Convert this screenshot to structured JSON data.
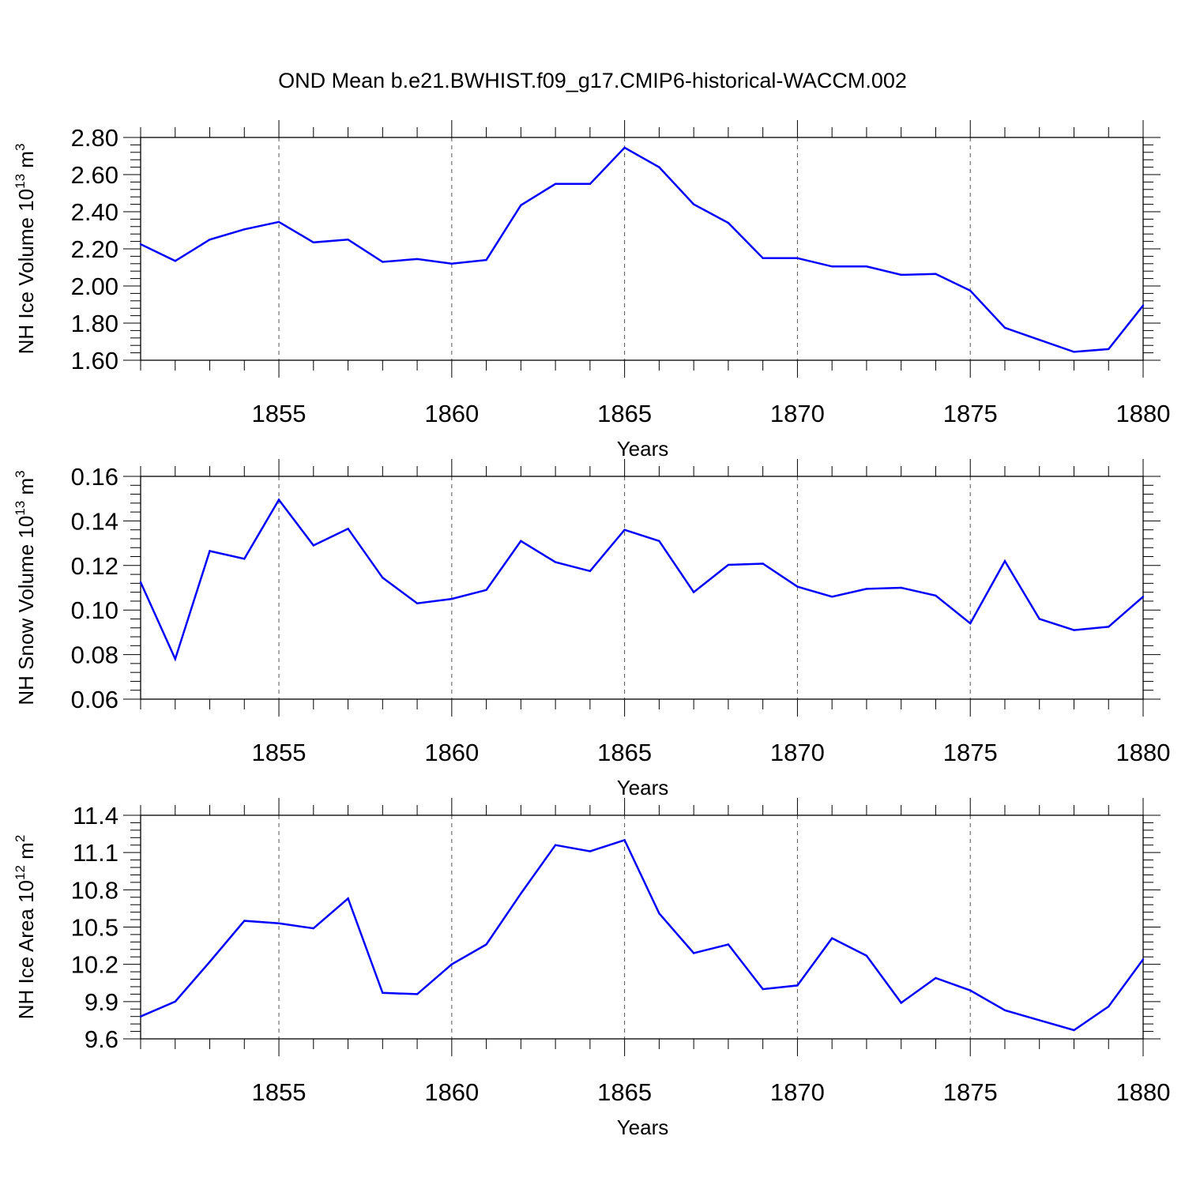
{
  "figure_title": "OND Mean b.e21.BWHIST.f09_g17.CMIP6-historical-WACCM.002",
  "chart_data": [
    {
      "type": "line",
      "title": "",
      "xlabel": "Years",
      "ylabel": "NH Ice Volume 10",
      "ylabel_exp": "13",
      "ylabel_unit": " m",
      "ylabel_unit_exp": "3",
      "xlim": [
        1851,
        1880
      ],
      "ylim": [
        1.6,
        2.8
      ],
      "xticks": [
        "1855",
        "1860",
        "1865",
        "1870",
        "1875",
        "1880"
      ],
      "yticks": [
        "1.60",
        "1.80",
        "2.00",
        "2.20",
        "2.40",
        "2.60",
        "2.80"
      ],
      "grid": "vertical dashed at major x ticks",
      "color": "#0000ff",
      "x": [
        1851,
        1852,
        1853,
        1854,
        1855,
        1856,
        1857,
        1858,
        1859,
        1860,
        1861,
        1862,
        1863,
        1864,
        1865,
        1866,
        1867,
        1868,
        1869,
        1870,
        1871,
        1872,
        1873,
        1874,
        1875,
        1876,
        1877,
        1878,
        1879,
        1880
      ],
      "values": [
        2.225,
        2.135,
        2.25,
        2.305,
        2.345,
        2.235,
        2.25,
        2.13,
        2.145,
        2.12,
        2.14,
        2.435,
        2.55,
        2.55,
        2.745,
        2.64,
        2.44,
        2.34,
        2.15,
        2.15,
        2.105,
        2.105,
        2.06,
        2.065,
        1.975,
        1.775,
        1.71,
        1.645,
        1.66,
        1.895
      ]
    },
    {
      "type": "line",
      "title": "",
      "xlabel": "Years",
      "ylabel": "NH Snow Volume 10",
      "ylabel_exp": "13",
      "ylabel_unit": " m",
      "ylabel_unit_exp": "3",
      "xlim": [
        1851,
        1880
      ],
      "ylim": [
        0.06,
        0.16
      ],
      "xticks": [
        "1855",
        "1860",
        "1865",
        "1870",
        "1875",
        "1880"
      ],
      "yticks": [
        "0.06",
        "0.08",
        "0.10",
        "0.12",
        "0.14",
        "0.16"
      ],
      "grid": "vertical dashed at major x ticks",
      "color": "#0000ff",
      "x": [
        1851,
        1852,
        1853,
        1854,
        1855,
        1856,
        1857,
        1858,
        1859,
        1860,
        1861,
        1862,
        1863,
        1864,
        1865,
        1866,
        1867,
        1868,
        1869,
        1870,
        1871,
        1872,
        1873,
        1874,
        1875,
        1876,
        1877,
        1878,
        1879,
        1880
      ],
      "values": [
        0.1125,
        0.078,
        0.1265,
        0.123,
        0.1495,
        0.129,
        0.1365,
        0.1145,
        0.103,
        0.105,
        0.109,
        0.131,
        0.1215,
        0.1175,
        0.136,
        0.131,
        0.108,
        0.1203,
        0.1208,
        0.1105,
        0.106,
        0.1095,
        0.11,
        0.1065,
        0.094,
        0.122,
        0.096,
        0.091,
        0.0925,
        0.106
      ]
    },
    {
      "type": "line",
      "title": "",
      "xlabel": "Years",
      "ylabel": "NH Ice Area 10",
      "ylabel_exp": "12",
      "ylabel_unit": " m",
      "ylabel_unit_exp": "2",
      "xlim": [
        1851,
        1880
      ],
      "ylim": [
        9.6,
        11.4
      ],
      "xticks": [
        "1855",
        "1860",
        "1865",
        "1870",
        "1875",
        "1880"
      ],
      "yticks": [
        "9.6",
        "9.9",
        "10.2",
        "10.5",
        "10.8",
        "11.1",
        "11.4"
      ],
      "grid": "vertical dashed at major x ticks",
      "color": "#0000ff",
      "x": [
        1851,
        1852,
        1853,
        1854,
        1855,
        1856,
        1857,
        1858,
        1859,
        1860,
        1861,
        1862,
        1863,
        1864,
        1865,
        1866,
        1867,
        1868,
        1869,
        1870,
        1871,
        1872,
        1873,
        1874,
        1875,
        1876,
        1877,
        1878,
        1879,
        1880
      ],
      "values": [
        9.78,
        9.9,
        10.22,
        10.55,
        10.53,
        10.49,
        10.73,
        9.97,
        9.96,
        10.2,
        10.36,
        10.77,
        11.16,
        11.11,
        11.2,
        10.61,
        10.29,
        10.36,
        10.0,
        10.03,
        10.41,
        10.27,
        9.89,
        10.09,
        9.99,
        9.83,
        9.75,
        9.67,
        9.86,
        10.24
      ]
    }
  ]
}
